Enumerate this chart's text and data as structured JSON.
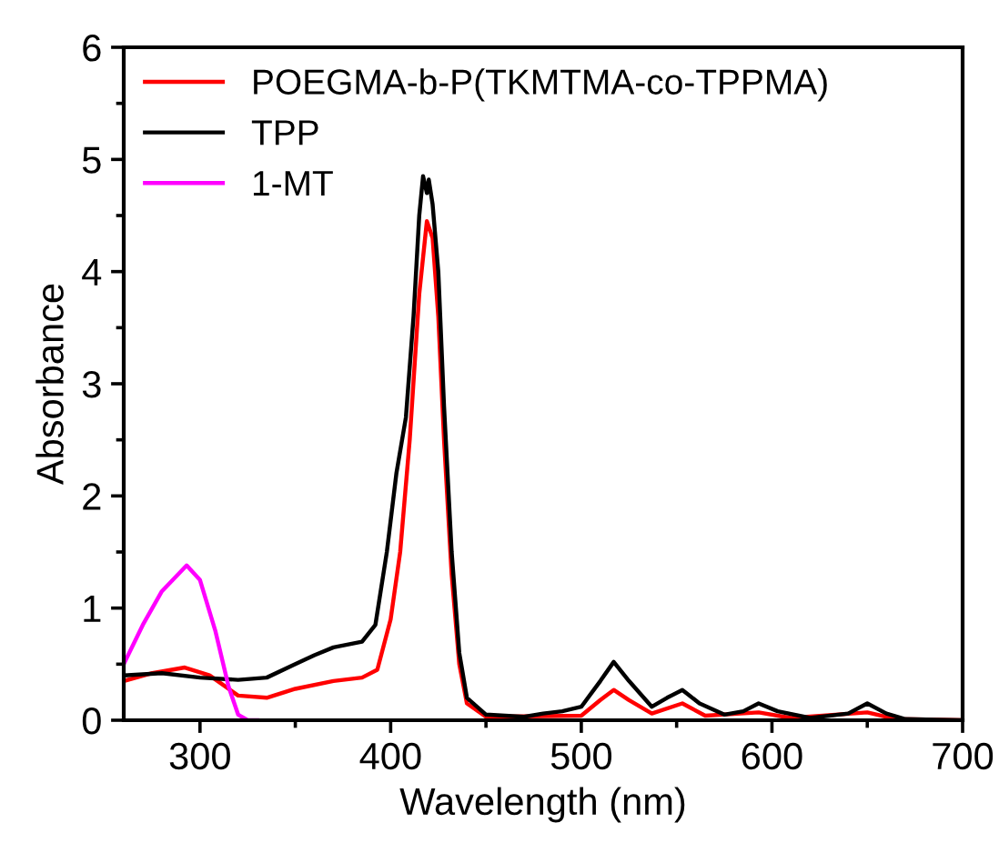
{
  "chart_data": {
    "type": "line",
    "xlabel": "Wavelength (nm)",
    "ylabel": "Absorbance",
    "xlim": [
      260,
      700
    ],
    "ylim": [
      0,
      6
    ],
    "xticks": [
      300,
      {
        "value": 350,
        "label": null
      },
      400,
      {
        "value": 450,
        "label": null
      },
      500,
      {
        "value": 550,
        "label": null
      },
      600,
      {
        "value": 650,
        "label": null
      },
      700
    ],
    "yticks": [
      0,
      {
        "value": 0.5,
        "label": null
      },
      1,
      {
        "value": 1.5,
        "label": null
      },
      2,
      {
        "value": 2.5,
        "label": null
      },
      3,
      {
        "value": 3.5,
        "label": null
      },
      4,
      {
        "value": 4.5,
        "label": null
      },
      5,
      {
        "value": 5.5,
        "label": null
      },
      6
    ],
    "grid": false,
    "legend": "top left",
    "marker": "none",
    "line_style": "solid",
    "series": [
      {
        "name": "POEGMA-b-P(TKMTMA-co-TPPMA)",
        "color": "#ff0000",
        "x": [
          260,
          275,
          292,
          305,
          320,
          335,
          350,
          370,
          385,
          393,
          400,
          405,
          410,
          415,
          419,
          422,
          425,
          428,
          432,
          436,
          440,
          450,
          500,
          510,
          517,
          525,
          537,
          553,
          565,
          593,
          610,
          650,
          665,
          700
        ],
        "values": [
          0.35,
          0.42,
          0.47,
          0.4,
          0.22,
          0.2,
          0.28,
          0.35,
          0.38,
          0.45,
          0.9,
          1.5,
          2.5,
          3.8,
          4.45,
          4.3,
          3.6,
          2.5,
          1.3,
          0.5,
          0.15,
          0.03,
          0.04,
          0.18,
          0.27,
          0.18,
          0.06,
          0.15,
          0.04,
          0.07,
          0.02,
          0.07,
          0.01,
          0.0
        ]
      },
      {
        "name": "TPP",
        "color": "#000000",
        "x": [
          260,
          280,
          300,
          320,
          335,
          350,
          360,
          370,
          385,
          392,
          398,
          403,
          408,
          412,
          415,
          417,
          419,
          420,
          422,
          425,
          428,
          432,
          436,
          440,
          450,
          470,
          480,
          490,
          500,
          510,
          517,
          525,
          537,
          545,
          553,
          562,
          575,
          585,
          593,
          603,
          620,
          640,
          650,
          660,
          670,
          700
        ],
        "values": [
          0.4,
          0.42,
          0.38,
          0.36,
          0.38,
          0.5,
          0.58,
          0.65,
          0.7,
          0.85,
          1.5,
          2.2,
          2.7,
          3.6,
          4.5,
          4.85,
          4.7,
          4.82,
          4.6,
          4.0,
          2.8,
          1.5,
          0.6,
          0.2,
          0.05,
          0.03,
          0.06,
          0.08,
          0.12,
          0.35,
          0.52,
          0.35,
          0.12,
          0.2,
          0.27,
          0.15,
          0.05,
          0.08,
          0.15,
          0.08,
          0.02,
          0.06,
          0.15,
          0.06,
          0.01,
          0.0
        ]
      },
      {
        "name": "1-MT",
        "color": "#ff00ff",
        "x": [
          260,
          270,
          280,
          293,
          300,
          308,
          315,
          320,
          325,
          330
        ],
        "values": [
          0.5,
          0.85,
          1.15,
          1.38,
          1.25,
          0.8,
          0.3,
          0.05,
          0.0,
          0.0
        ]
      }
    ]
  }
}
